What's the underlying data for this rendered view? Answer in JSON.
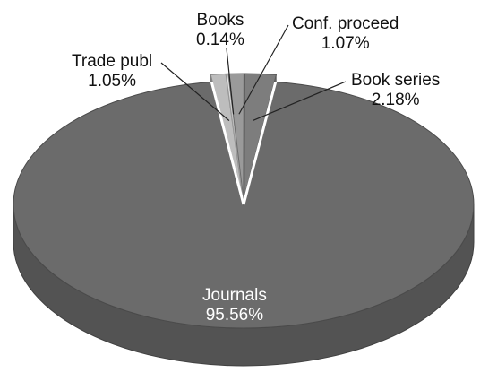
{
  "chart_data": {
    "type": "pie",
    "style": "3d-exploded",
    "title": "",
    "slices": [
      {
        "label": "Journals",
        "value": 95.56,
        "value_label": "95.56%",
        "color": "#6b6b6b"
      },
      {
        "label": "Trade publ",
        "value": 1.05,
        "value_label": "1.05%",
        "color": "#bdbdbd"
      },
      {
        "label": "Books",
        "value": 0.14,
        "value_label": "0.14%",
        "color": "#e6e6e6"
      },
      {
        "label": "Conf. proceed",
        "value": 1.07,
        "value_label": "1.07%",
        "color": "#9a9a9a"
      },
      {
        "label": "Book series",
        "value": 2.18,
        "value_label": "2.18%",
        "color": "#7d7d7d"
      }
    ],
    "legend": "none",
    "label_style": "callouts"
  }
}
